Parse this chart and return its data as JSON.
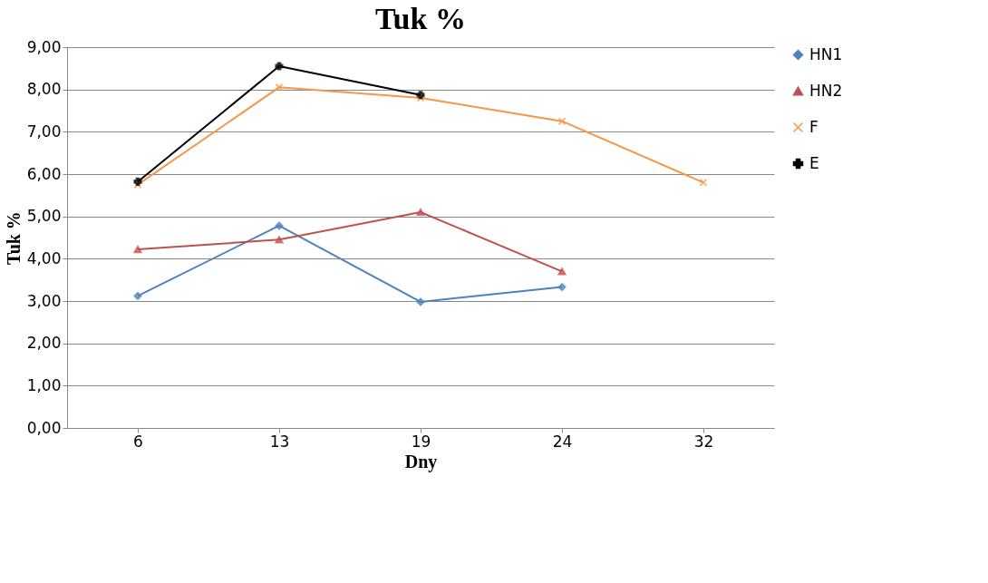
{
  "chart_data": {
    "type": "line",
    "title": "Tuk %",
    "xlabel": "Dny",
    "ylabel": "Tuk %",
    "categories": [
      "6",
      "13",
      "19",
      "24",
      "32"
    ],
    "series": [
      {
        "name": "HN1",
        "color": "#4f81bd",
        "marker": "diamond",
        "values": [
          3.12,
          4.78,
          2.98,
          3.33,
          null
        ]
      },
      {
        "name": "HN2",
        "color": "#c0504d",
        "marker": "triangle",
        "values": [
          4.22,
          4.45,
          5.1,
          3.7,
          null
        ]
      },
      {
        "name": "F",
        "color": "#f79646",
        "marker": "cross",
        "values": [
          5.75,
          8.05,
          7.8,
          7.25,
          5.8
        ]
      },
      {
        "name": "E",
        "color": "#000000",
        "marker": "cross",
        "values": [
          5.82,
          8.55,
          7.87,
          null,
          null
        ]
      }
    ],
    "ylim": [
      0,
      9
    ],
    "yticks": [
      {
        "value": 0,
        "label": "0,00"
      },
      {
        "value": 1,
        "label": "1,00"
      },
      {
        "value": 2,
        "label": "2,00"
      },
      {
        "value": 3,
        "label": "3,00"
      },
      {
        "value": 4,
        "label": "4,00"
      },
      {
        "value": 5,
        "label": "5,00"
      },
      {
        "value": 6,
        "label": "6,00"
      },
      {
        "value": 7,
        "label": "7,00"
      },
      {
        "value": 8,
        "label": "8,00"
      },
      {
        "value": 9,
        "label": "9,00"
      }
    ],
    "grid": "y",
    "legend": "right"
  }
}
